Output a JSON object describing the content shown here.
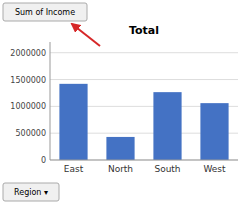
{
  "chart_data": {
    "type": "bar",
    "title": "Total",
    "categories": [
      "East",
      "North",
      "South",
      "West"
    ],
    "values": [
      1420000,
      430000,
      1265000,
      1060000
    ],
    "color": "#4472C4",
    "ylim": [
      0,
      2200000
    ],
    "yticks": [
      0,
      500000,
      1000000,
      1500000,
      2000000
    ],
    "grid": true,
    "annotations": [
      "Sum of Income",
      "Region ▾"
    ]
  }
}
